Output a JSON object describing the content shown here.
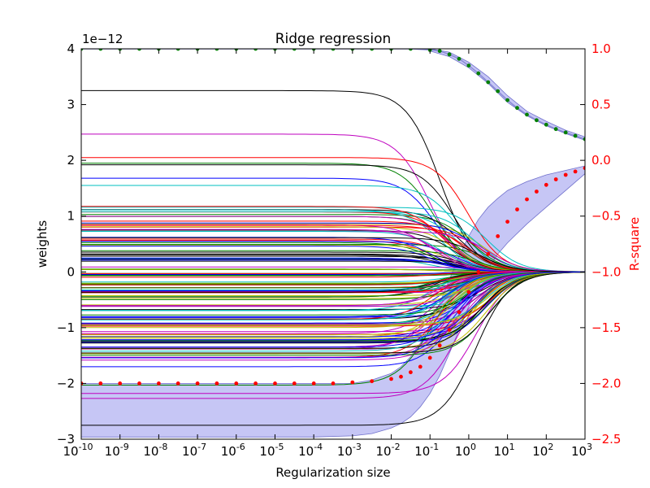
{
  "chart_data": {
    "type": "line",
    "title": "Ridge regression",
    "xlabel": "Regularization size",
    "ylabel": "weights",
    "y2label": "R-square",
    "xscale": "log",
    "xlim_log10": [
      -10,
      3
    ],
    "x_ticks": [
      {
        "base": "10",
        "exp": "-10"
      },
      {
        "base": "10",
        "exp": "-9"
      },
      {
        "base": "10",
        "exp": "-8"
      },
      {
        "base": "10",
        "exp": "-7"
      },
      {
        "base": "10",
        "exp": "-6"
      },
      {
        "base": "10",
        "exp": "-5"
      },
      {
        "base": "10",
        "exp": "-4"
      },
      {
        "base": "10",
        "exp": "-3"
      },
      {
        "base": "10",
        "exp": "-2"
      },
      {
        "base": "10",
        "exp": "-1"
      },
      {
        "base": "10",
        "exp": "0"
      },
      {
        "base": "10",
        "exp": "1"
      },
      {
        "base": "10",
        "exp": "2"
      },
      {
        "base": "10",
        "exp": "3"
      }
    ],
    "ylim": [
      -3,
      4
    ],
    "y_ticks": [
      "4",
      "3",
      "2",
      "1",
      "0",
      "−1",
      "−2",
      "−3"
    ],
    "y_offset_label": "1e−12",
    "y2lim": [
      -2.5,
      1.0
    ],
    "y2_ticks": [
      "1.0",
      "0.5",
      "0.0",
      "−0.5",
      "−1.0",
      "−1.5",
      "−2.0",
      "−2.5"
    ],
    "grid": false,
    "colors": {
      "axis": "#000000",
      "right_axis": "#ff0000",
      "band": "#b3b3f2",
      "band_edge": "#7070cc",
      "green_dots": "#007f00",
      "red_dots": "#ff0000"
    },
    "weight_path_colors": [
      "#000000",
      "#0000ff",
      "#ff0000",
      "#00bfbf",
      "#bf00bf",
      "#bfbf00",
      "#008000"
    ],
    "weight_path_note_values": {
      "initial_weights_highlighted": [
        3.25,
        2.47,
        2.05,
        1.95,
        1.92,
        1.68,
        1.55,
        -1.7,
        -2.03,
        -2.18,
        -2.27,
        -2.75
      ],
      "dense_band_range": [
        -1.6,
        1.2
      ]
    },
    "series": [
      {
        "name": "",
        "axis": "right",
        "style": "green-dots",
        "log10_x": [
          -10,
          -9.5,
          -9,
          -8.5,
          -8,
          -7.5,
          -7,
          -6.5,
          -6,
          -5.5,
          -5,
          -4.5,
          -4,
          -3.5,
          -3,
          -2.5,
          -2,
          -1.5,
          -1,
          -0.75,
          -0.5,
          -0.25,
          0,
          0.25,
          0.5,
          0.75,
          1,
          1.25,
          1.5,
          1.75,
          2,
          2.25,
          2.5,
          2.75,
          3
        ],
        "values": [
          1.0,
          1.0,
          1.0,
          1.0,
          1.0,
          1.0,
          1.0,
          1.0,
          1.0,
          1.0,
          1.0,
          1.0,
          1.0,
          1.0,
          1.0,
          1.0,
          1.0,
          1.0,
          0.99,
          0.98,
          0.95,
          0.91,
          0.85,
          0.78,
          0.7,
          0.62,
          0.54,
          0.47,
          0.41,
          0.36,
          0.32,
          0.28,
          0.25,
          0.22,
          0.19
        ]
      },
      {
        "name": "",
        "axis": "right",
        "style": "red-dots",
        "log10_x": [
          -10,
          -9.5,
          -9,
          -8.5,
          -8,
          -7.5,
          -7,
          -6.5,
          -6,
          -5.5,
          -5,
          -4.5,
          -4,
          -3.5,
          -3,
          -2.5,
          -2,
          -1.75,
          -1.5,
          -1.25,
          -1,
          -0.75,
          -0.5,
          -0.25,
          0,
          0.25,
          0.5,
          0.75,
          1,
          1.25,
          1.5,
          1.75,
          2,
          2.25,
          2.5,
          2.75,
          3
        ],
        "values": [
          -2.0,
          -2.0,
          -2.0,
          -2.0,
          -2.0,
          -2.0,
          -2.0,
          -2.0,
          -2.0,
          -2.0,
          -2.0,
          -2.0,
          -2.0,
          -2.0,
          -1.99,
          -1.98,
          -1.96,
          -1.94,
          -1.9,
          -1.85,
          -1.77,
          -1.66,
          -1.52,
          -1.36,
          -1.18,
          -1.0,
          -0.84,
          -0.68,
          -0.55,
          -0.44,
          -0.35,
          -0.28,
          -0.22,
          -0.17,
          -0.13,
          -0.1,
          -0.07
        ]
      }
    ],
    "bands": [
      {
        "axis": "right",
        "log10_x": [
          -10,
          -8,
          -6,
          -4,
          -3,
          -2.5,
          -2,
          -1.75,
          -1.5,
          -1.25,
          -1,
          -0.75,
          -0.5,
          -0.25,
          0,
          0.25,
          0.5,
          0.75,
          1,
          1.5,
          2,
          2.5,
          3
        ],
        "upper": [
          -2.0,
          -2.0,
          -2.0,
          -2.0,
          -2.0,
          -1.97,
          -1.91,
          -1.85,
          -1.76,
          -1.64,
          -1.48,
          -1.28,
          -1.07,
          -0.86,
          -0.68,
          -0.53,
          -0.42,
          -0.34,
          -0.27,
          -0.19,
          -0.13,
          -0.09,
          -0.05
        ],
        "lower": [
          -2.48,
          -2.48,
          -2.48,
          -2.48,
          -2.47,
          -2.45,
          -2.4,
          -2.36,
          -2.3,
          -2.21,
          -2.09,
          -1.93,
          -1.73,
          -1.52,
          -1.31,
          -1.12,
          -0.97,
          -0.84,
          -0.74,
          -0.57,
          -0.42,
          -0.27,
          -0.12
        ]
      },
      {
        "axis": "right",
        "log10_x": [
          -1,
          -0.5,
          0,
          0.5,
          1,
          1.5,
          2,
          2.5,
          3
        ],
        "upper": [
          1.0,
          0.97,
          0.88,
          0.75,
          0.58,
          0.44,
          0.35,
          0.27,
          0.21
        ],
        "lower": [
          0.98,
          0.93,
          0.83,
          0.69,
          0.52,
          0.4,
          0.31,
          0.24,
          0.18
        ]
      }
    ]
  }
}
